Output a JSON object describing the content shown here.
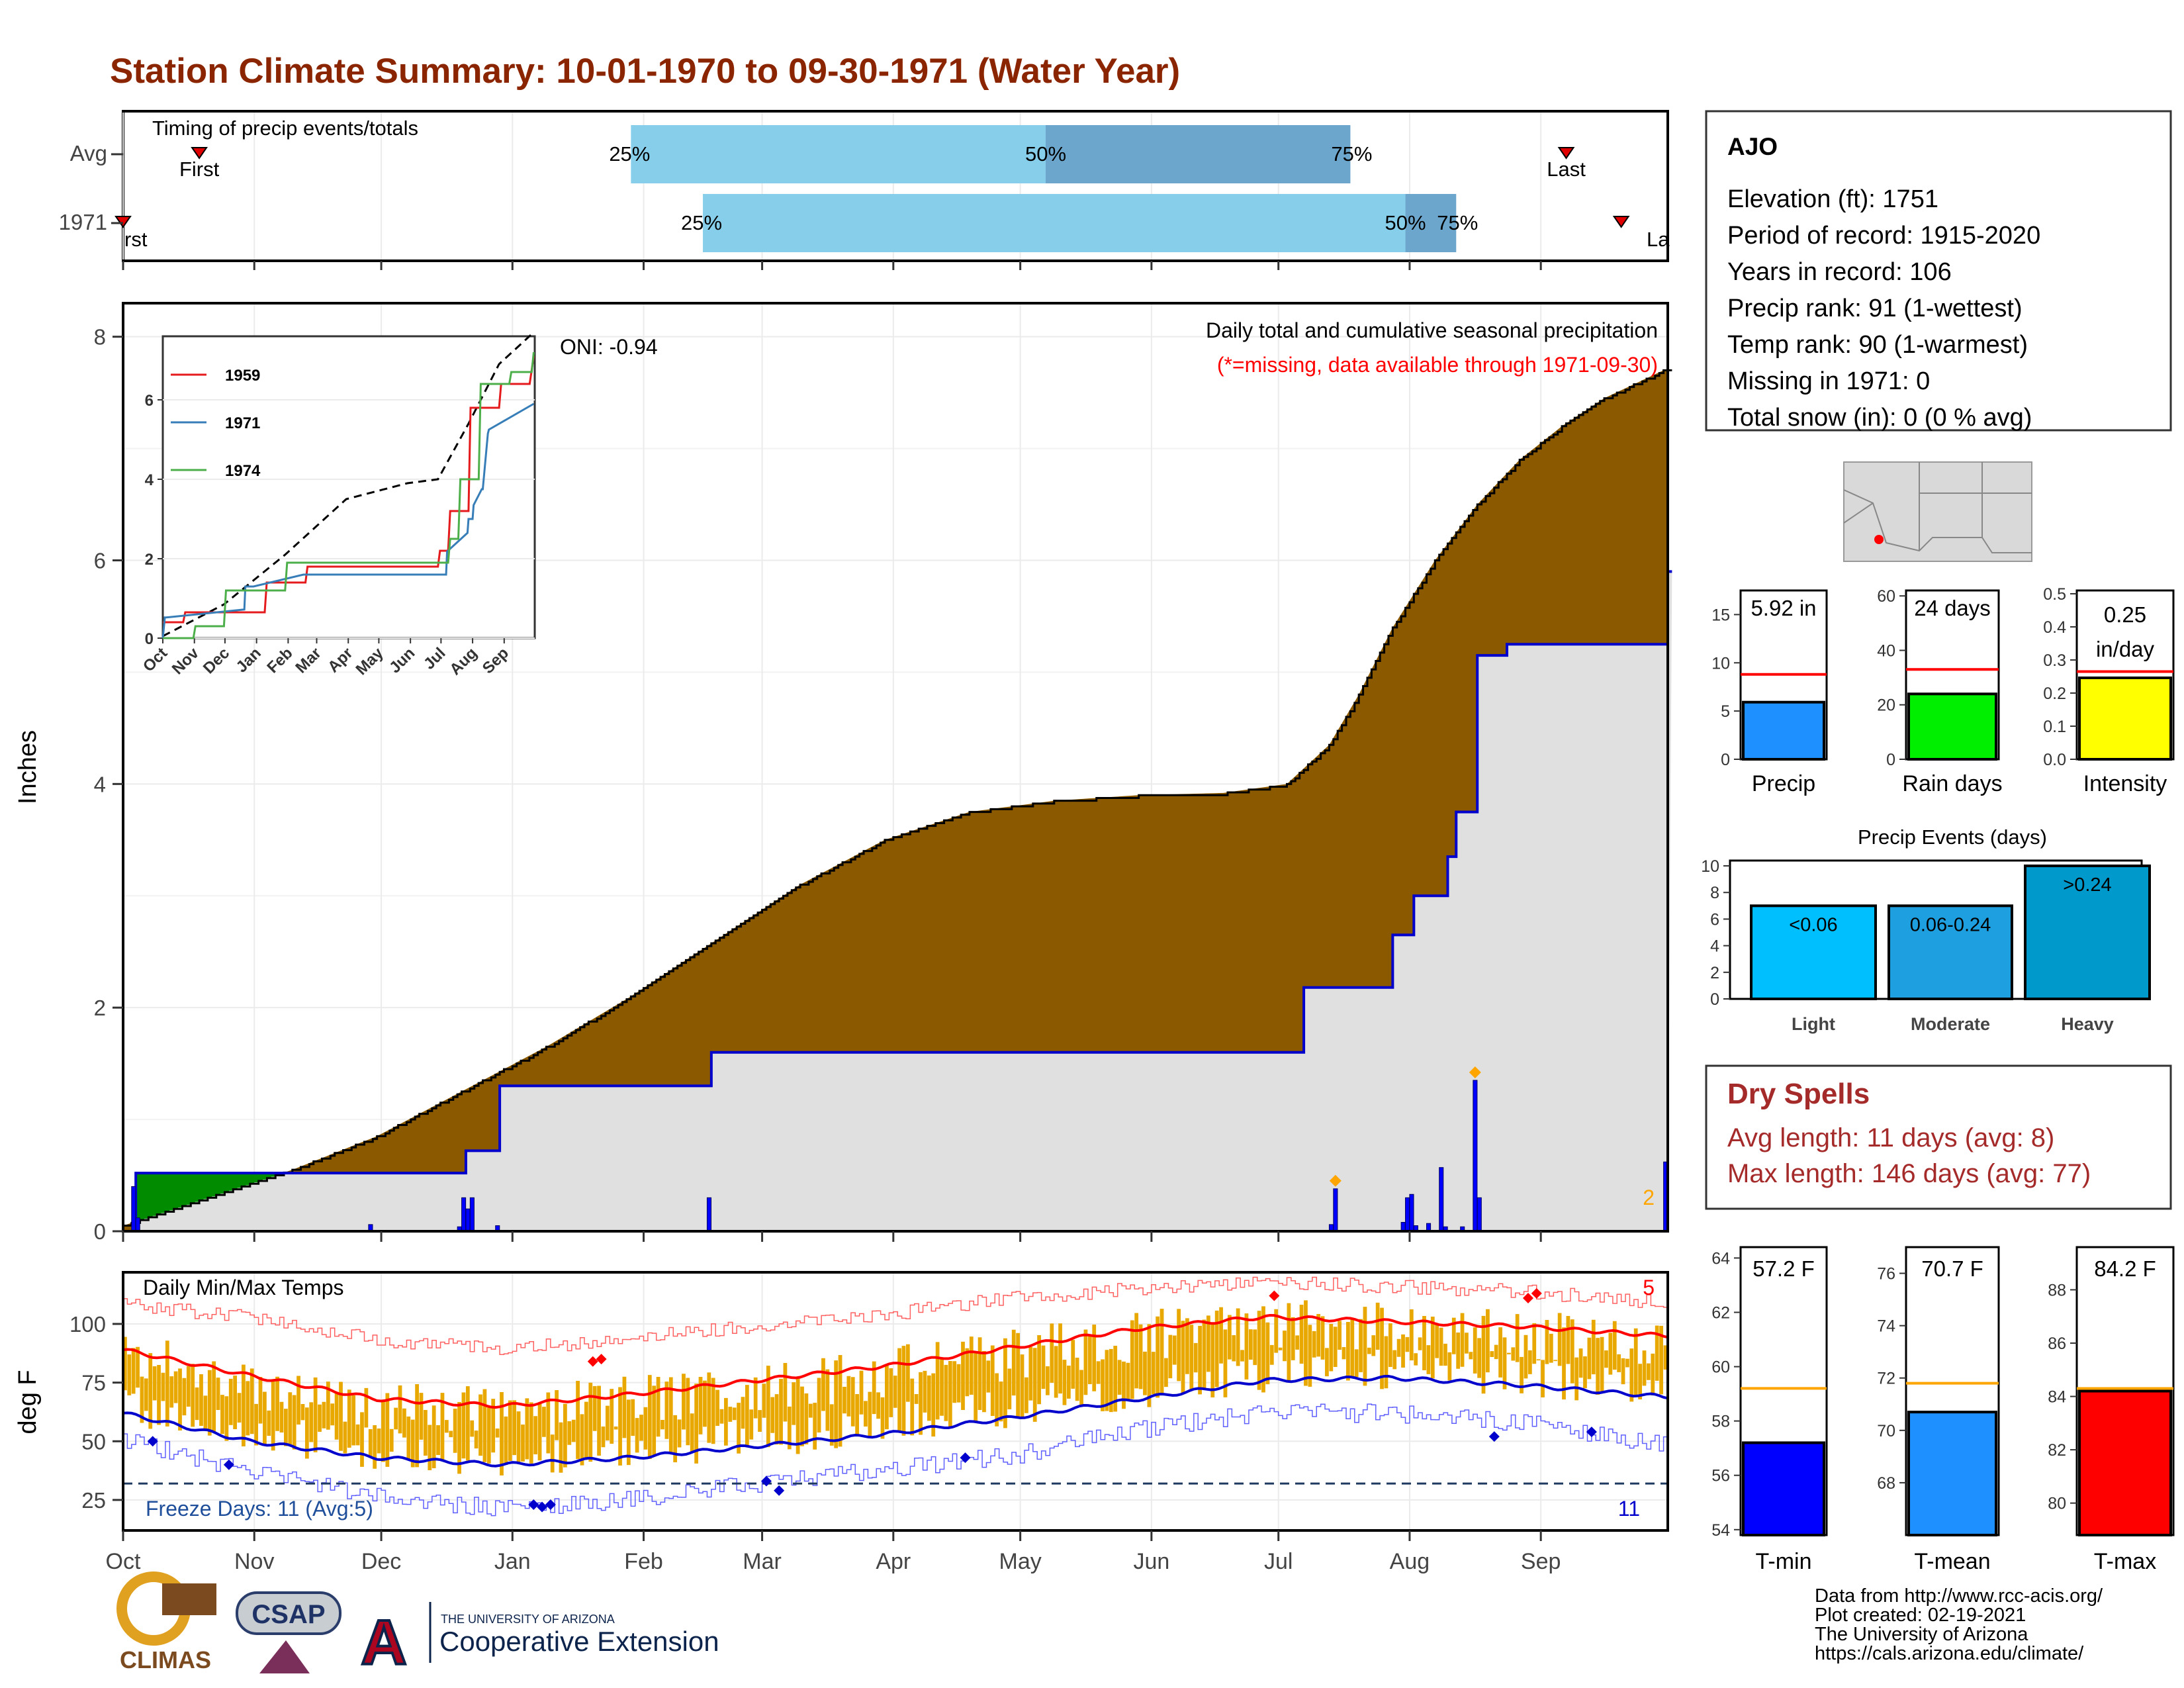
{
  "title": "Station Climate Summary: 10-01-1970 to 09-30-1971 (Water Year)",
  "months": [
    "Oct",
    "Nov",
    "Dec",
    "Jan",
    "Feb",
    "Mar",
    "Apr",
    "May",
    "Jun",
    "Jul",
    "Aug",
    "Sep"
  ],
  "colors": {
    "title": "#8B2500",
    "cum_fill": "#8B5A00",
    "normal_fill": "#E0E0E0",
    "deficit_fill": "#008B00",
    "precip_bar": "#0000FF",
    "tmax": "#FF0000",
    "tmin": "#0000CC",
    "range_bar": "#E8A800",
    "timing_light": "#87CEEB",
    "timing_dark": "#6CA6CD",
    "dry": "#A52A2A"
  },
  "timing": {
    "label": "Timing of precip events/totals",
    "rows": [
      "Avg",
      "1971"
    ],
    "first_label": "First",
    "last_label": "Last",
    "first_label_cut": "rst",
    "last_label_cut": "La",
    "pct_labels": [
      "25%",
      "50%",
      "75%"
    ],
    "avg": {
      "first_day": 18,
      "p25": 120,
      "p50": 218,
      "p75": 290,
      "last_day": 341
    },
    "year": {
      "first_day": 0,
      "p25": 137,
      "p50": 303,
      "p75": 315,
      "last_day": 354
    }
  },
  "precip_panel": {
    "ylabel": "Inches",
    "yticks": [
      "0",
      "2",
      "4",
      "6",
      "8"
    ],
    "header": "Daily total and cumulative seasonal precipitation",
    "missing_note": "(*=missing, data available through 1971-09-30)",
    "oni": "ONI: -0.94",
    "missing_count": "2",
    "chart_data": {
      "type": "area",
      "ylim": [
        0,
        8.3
      ],
      "normal_cumulative": {
        "days": [
          0,
          20,
          40,
          60,
          80,
          100,
          120,
          140,
          160,
          180,
          200,
          220,
          240,
          260,
          275,
          285,
          292,
          300,
          310,
          320,
          330,
          340,
          350,
          364
        ],
        "inches": [
          0.05,
          0.3,
          0.55,
          0.85,
          1.25,
          1.65,
          2.1,
          2.6,
          3.1,
          3.5,
          3.75,
          3.85,
          3.9,
          3.92,
          4.0,
          4.35,
          4.8,
          5.4,
          6.0,
          6.5,
          6.9,
          7.2,
          7.45,
          7.7
        ]
      },
      "year_cumulative": {
        "days": [
          0,
          2,
          3,
          80,
          81,
          88,
          89,
          138,
          139,
          278,
          279,
          299,
          300,
          304,
          305,
          306,
          313,
          314,
          315,
          319,
          320,
          326,
          327,
          364,
          365
        ],
        "inches": [
          0.0,
          0.0,
          0.52,
          0.52,
          0.72,
          0.72,
          1.3,
          1.3,
          1.6,
          1.6,
          2.18,
          2.18,
          2.65,
          2.65,
          3.0,
          3.0,
          3.35,
          3.35,
          3.75,
          3.75,
          5.15,
          5.15,
          5.25,
          5.25,
          5.9
        ]
      },
      "daily_precip": [
        {
          "day": 2,
          "value": 0.4
        },
        {
          "day": 3,
          "value": 0.12
        },
        {
          "day": 58,
          "value": 0.06
        },
        {
          "day": 79,
          "value": 0.04
        },
        {
          "day": 80,
          "value": 0.3
        },
        {
          "day": 81,
          "value": 0.2
        },
        {
          "day": 82,
          "value": 0.3
        },
        {
          "day": 88,
          "value": 0.05
        },
        {
          "day": 138,
          "value": 0.3
        },
        {
          "day": 285,
          "value": 0.06
        },
        {
          "day": 286,
          "value": 0.38
        },
        {
          "day": 302,
          "value": 0.08
        },
        {
          "day": 303,
          "value": 0.3
        },
        {
          "day": 304,
          "value": 0.33
        },
        {
          "day": 305,
          "value": 0.05
        },
        {
          "day": 308,
          "value": 0.07
        },
        {
          "day": 311,
          "value": 0.57
        },
        {
          "day": 312,
          "value": 0.04
        },
        {
          "day": 316,
          "value": 0.04
        },
        {
          "day": 319,
          "value": 1.35
        },
        {
          "day": 320,
          "value": 0.3
        },
        {
          "day": 364,
          "value": 0.62
        }
      ],
      "missing_markers": [
        286,
        319
      ]
    },
    "inset": {
      "chart_data": {
        "type": "line",
        "xlabels": [
          "Oct",
          "Nov",
          "Dec",
          "Jan",
          "Feb",
          "Mar",
          "Apr",
          "May",
          "Jun",
          "Jul",
          "Aug",
          "Sep"
        ],
        "yticks": [
          "0",
          "2",
          "4",
          "6"
        ],
        "ylim": [
          0,
          7.6
        ],
        "series": [
          {
            "name": "1959",
            "color": "#E41A1C",
            "days": [
              0,
              20,
              22,
              100,
              102,
              140,
              142,
              270,
              272,
              280,
              282,
              300,
              302,
              330,
              332,
              360,
              364
            ],
            "values": [
              0.4,
              0.4,
              0.65,
              0.65,
              1.4,
              1.4,
              1.8,
              1.8,
              2.2,
              2.2,
              3.2,
              3.2,
              5.8,
              5.8,
              6.4,
              6.4,
              7.1
            ]
          },
          {
            "name": "1971",
            "color": "#377EB8",
            "days": [
              0,
              2,
              3,
              80,
              81,
              88,
              89,
              138,
              139,
              278,
              279,
              299,
              300,
              304,
              305,
              313,
              314,
              319,
              320,
              364
            ],
            "values": [
              0,
              0.52,
              0.52,
              0.72,
              1.3,
              1.3,
              1.3,
              1.6,
              1.6,
              1.6,
              2.18,
              2.65,
              3.0,
              3.0,
              3.35,
              3.75,
              3.75,
              5.15,
              5.25,
              5.9
            ]
          },
          {
            "name": "1974",
            "color": "#4DAF4A",
            "days": [
              0,
              30,
              32,
              60,
              62,
              120,
              122,
              280,
              282,
              290,
              292,
              310,
              312,
              340,
              342,
              362,
              364
            ],
            "values": [
              0,
              0,
              0.3,
              0.3,
              1.2,
              1.2,
              1.9,
              1.9,
              2.5,
              2.5,
              4.0,
              4.0,
              6.4,
              6.4,
              6.7,
              6.7,
              7.2
            ]
          }
        ],
        "normal": {
          "days": [
            0,
            60,
            120,
            180,
            240,
            270,
            300,
            330,
            364
          ],
          "values": [
            0.05,
            0.85,
            2.1,
            3.5,
            3.9,
            4.0,
            5.4,
            6.9,
            7.7
          ]
        }
      }
    }
  },
  "temp_panel": {
    "ylabel": "deg F",
    "yticks": [
      "25",
      "50",
      "75",
      "100"
    ],
    "title": "Daily Min/Max Temps",
    "freeze_label": "Freeze Days: 11 (Avg:5)",
    "freeze_count": "11",
    "hot_count": "5",
    "chart_data": {
      "type": "line",
      "ylim": [
        12,
        122
      ],
      "normal_max": {
        "days": [
          0,
          30,
          60,
          90,
          120,
          150,
          180,
          210,
          240,
          270,
          300,
          330,
          364
        ],
        "values": [
          89,
          78,
          68,
          65,
          70,
          76,
          82,
          90,
          98,
          103,
          101,
          99,
          95
        ]
      },
      "normal_min": {
        "days": [
          0,
          30,
          60,
          90,
          120,
          150,
          180,
          210,
          240,
          270,
          300,
          330,
          364
        ],
        "values": [
          62,
          50,
          43,
          40,
          43,
          48,
          53,
          60,
          68,
          76,
          77,
          74,
          69
        ]
      },
      "record_max": {
        "days": [
          0,
          30,
          60,
          90,
          120,
          150,
          180,
          210,
          240,
          270,
          300,
          330,
          364
        ],
        "values": [
          108,
          103,
          93,
          89,
          94,
          99,
          104,
          111,
          115,
          118,
          116,
          114,
          109
        ]
      },
      "record_min": {
        "days": [
          0,
          30,
          60,
          90,
          120,
          150,
          180,
          210,
          240,
          270,
          300,
          330,
          364
        ],
        "values": [
          51,
          37,
          26,
          21,
          25,
          32,
          38,
          44,
          55,
          62,
          62,
          58,
          48
        ]
      },
      "freeze_threshold": 32
    }
  },
  "station": {
    "name": "AJO",
    "lines": [
      "Elevation (ft): 1751",
      "Period of record: 1915-2020",
      "Years in record: 106",
      "Precip rank: 91 (1-wettest)",
      "Temp rank: 90 (1-warmest)",
      "Missing in 1971: 0",
      "Total snow (in): 0 (0 % avg)"
    ]
  },
  "mini_bars": [
    {
      "label": "Precip",
      "value_text": "5.92 in",
      "value": 5.92,
      "avg": 8.8,
      "ymax": 17.5,
      "yticks": [
        "0",
        "5",
        "10",
        "15"
      ],
      "tick_values": [
        0,
        5,
        10,
        15
      ],
      "color": "#1E90FF"
    },
    {
      "label": "Rain days",
      "value_text": "24 days",
      "value": 24,
      "avg": 33,
      "ymax": 62,
      "yticks": [
        "0",
        "20",
        "40",
        "60"
      ],
      "tick_values": [
        0,
        20,
        40,
        60
      ],
      "color": "#00EE00"
    },
    {
      "label": "Intensity",
      "value_text": "0.25\nin/day",
      "value": 0.246,
      "avg": 0.265,
      "ymax": 0.51,
      "yticks": [
        "0.0",
        "0.1",
        "0.2",
        "0.3",
        "0.4",
        "0.5"
      ],
      "tick_values": [
        0,
        0.1,
        0.2,
        0.3,
        0.4,
        0.5
      ],
      "color": "#FFFF00"
    }
  ],
  "precip_events": {
    "title": "Precip Events (days)",
    "yticks": [
      "0",
      "2",
      "4",
      "6",
      "8",
      "10"
    ],
    "chart_data": {
      "type": "bar",
      "categories": [
        "Light",
        "Moderate",
        "Heavy"
      ],
      "values": [
        7,
        7,
        10
      ],
      "bar_labels": [
        "<0.06",
        "0.06-0.24",
        ">0.24"
      ],
      "colors": [
        "#00BFFF",
        "#1E9FE0",
        "#0099CC"
      ],
      "ylim": [
        0,
        10.4
      ]
    }
  },
  "dry_spells": {
    "title": "Dry Spells",
    "avg_length": "Avg length: 11 days (avg: 8)",
    "max_length": "Max length: 146 days (avg: 77)"
  },
  "temp_bars": [
    {
      "label": "T-min",
      "value_text": "57.2 F",
      "value": 57.2,
      "avg": 59.2,
      "ylim": [
        53.8,
        64.4
      ],
      "yticks": [
        "54",
        "56",
        "58",
        "60",
        "62",
        "64"
      ],
      "tick_values": [
        54,
        56,
        58,
        60,
        62,
        64
      ],
      "color": "#0000FF"
    },
    {
      "label": "T-mean",
      "value_text": "70.7 F",
      "value": 70.7,
      "avg": 71.8,
      "ylim": [
        66.0,
        77.0
      ],
      "yticks": [
        "68",
        "70",
        "72",
        "74",
        "76"
      ],
      "tick_values": [
        68,
        70,
        72,
        74,
        76
      ],
      "color": "#1E90FF"
    },
    {
      "label": "T-max",
      "value_text": "84.2 F",
      "value": 84.2,
      "avg": 84.3,
      "ylim": [
        78.8,
        89.6
      ],
      "yticks": [
        "80",
        "82",
        "84",
        "86",
        "88"
      ],
      "tick_values": [
        80,
        82,
        84,
        86,
        88
      ],
      "color": "#FF0000"
    }
  ],
  "credits": [
    "Data from http://www.rcc-acis.org/",
    "Plot created: 02-19-2021",
    "The University of Arizona",
    "https://cals.arizona.edu/climate/"
  ],
  "logos": {
    "climas": "CLIMAS",
    "csap": "CSAP",
    "ua_small": "THE UNIVERSITY OF ARIZONA",
    "ua_big": "Cooperative Extension"
  }
}
